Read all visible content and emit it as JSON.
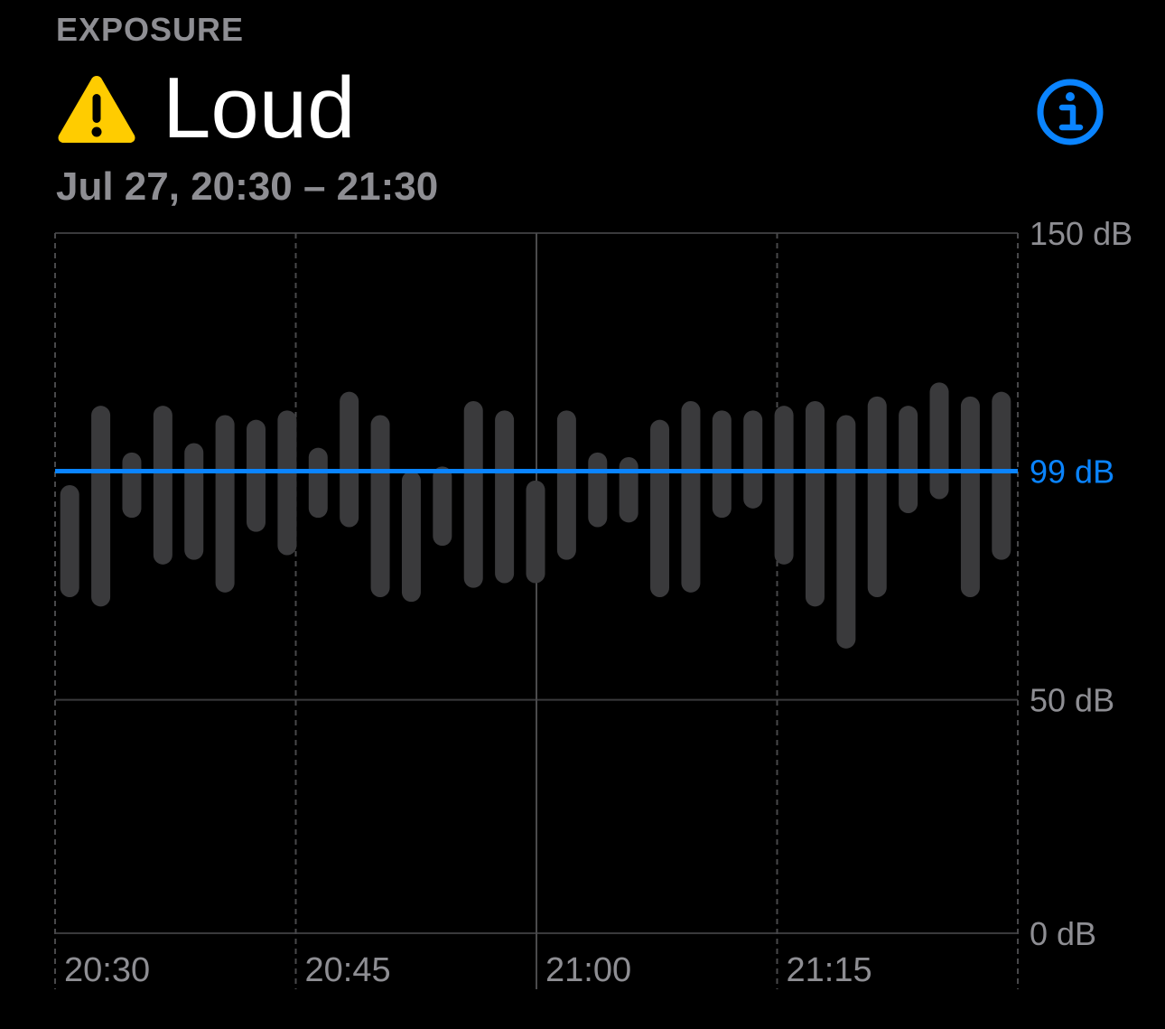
{
  "header": {
    "section_label": "EXPOSURE",
    "status": "Loud",
    "status_icon": "warning-icon",
    "info_icon": "info-icon",
    "date_range": "Jul 27, 20:30 – 21:30"
  },
  "colors": {
    "warning": "#FFCC00",
    "accent": "#0A84FF",
    "bar": "#3A3A3C",
    "grid": "#3A3A3C",
    "secondary_text": "#8E8E93"
  },
  "chart_data": {
    "type": "bar",
    "subtype": "range",
    "ylim": [
      0,
      150
    ],
    "y_ticks": [
      "150 dB",
      "50 dB",
      "0 dB"
    ],
    "x_ticks": [
      "20:30",
      "20:45",
      "21:00",
      "21:15"
    ],
    "average": 99,
    "average_label": "99 dB",
    "grid": true,
    "ranges": [
      [
        72,
        96
      ],
      [
        70,
        113
      ],
      [
        89,
        103
      ],
      [
        79,
        113
      ],
      [
        80,
        105
      ],
      [
        73,
        111
      ],
      [
        86,
        110
      ],
      [
        81,
        112
      ],
      [
        89,
        104
      ],
      [
        87,
        116
      ],
      [
        72,
        111
      ],
      [
        71,
        99
      ],
      [
        83,
        100
      ],
      [
        74,
        114
      ],
      [
        75,
        112
      ],
      [
        75,
        97
      ],
      [
        80,
        112
      ],
      [
        87,
        103
      ],
      [
        88,
        102
      ],
      [
        72,
        110
      ],
      [
        73,
        114
      ],
      [
        89,
        112
      ],
      [
        91,
        112
      ],
      [
        79,
        113
      ],
      [
        70,
        114
      ],
      [
        61,
        111
      ],
      [
        72,
        115
      ],
      [
        90,
        113
      ],
      [
        93,
        118
      ],
      [
        72,
        115
      ],
      [
        80,
        116
      ]
    ]
  }
}
